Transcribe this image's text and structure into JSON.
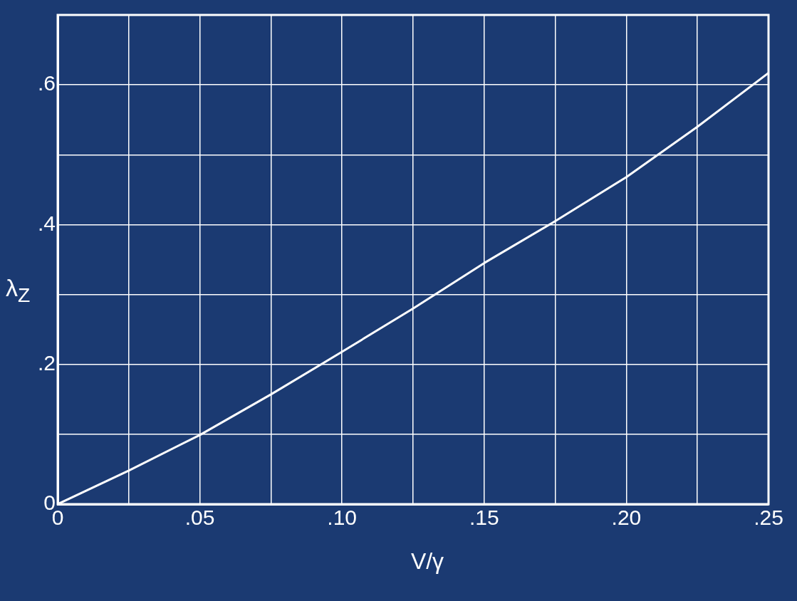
{
  "chart_data": {
    "type": "line",
    "xlabel": "V/γ",
    "ylabel": "λ$_{Z}$",
    "x": [
      0,
      0.025,
      0.05,
      0.075,
      0.1,
      0.125,
      0.15,
      0.175,
      0.2,
      0.225,
      0.25
    ],
    "series": [
      {
        "color": "#ffffff",
        "values": [
          0,
          0.048,
          0.099,
          0.157,
          0.218,
          0.28,
          0.345,
          0.405,
          0.468,
          0.54,
          0.617
        ]
      }
    ],
    "xlim": [
      0,
      0.25
    ],
    "xticks": [
      0,
      {
        "value": 0.025,
        "label": null
      },
      {
        "value": 0.05,
        "label": ".05"
      },
      {
        "value": 0.075,
        "label": null
      },
      {
        "value": 0.1,
        "label": ".10"
      },
      {
        "value": 0.125,
        "label": null
      },
      {
        "value": 0.15,
        "label": ".15"
      },
      {
        "value": 0.175,
        "label": null
      },
      {
        "value": 0.2,
        "label": ".20"
      },
      {
        "value": 0.225,
        "label": null
      },
      {
        "value": 0.25,
        "label": ".25"
      }
    ],
    "ylim": [
      0,
      0.7
    ],
    "yticks": [
      0,
      {
        "value": 0.1,
        "label": null
      },
      {
        "value": 0.2,
        "label": ".2"
      },
      {
        "value": 0.3,
        "label": null
      },
      {
        "value": 0.4,
        "label": ".4"
      },
      {
        "value": 0.5,
        "label": null
      },
      {
        "value": 0.6,
        "label": ".6"
      },
      {
        "value": 0.7,
        "label": null
      }
    ],
    "grid": true,
    "legend": false,
    "marker": "none",
    "line_style": "solid"
  }
}
